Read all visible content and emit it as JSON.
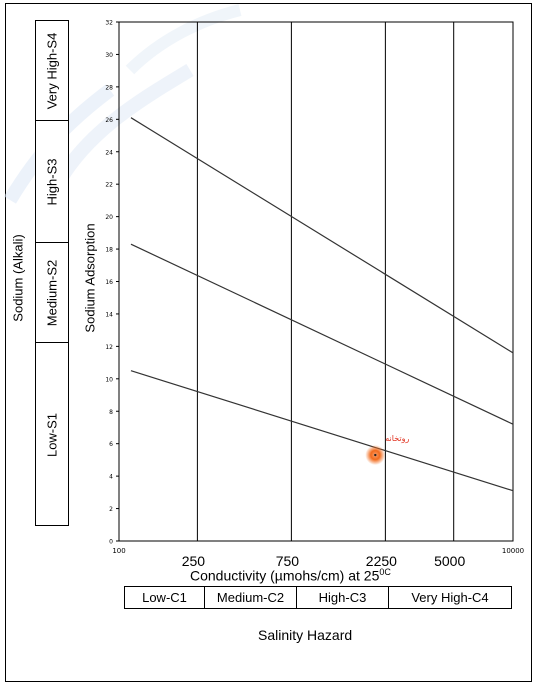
{
  "chart_data": {
    "type": "scatter",
    "title": "",
    "xlabel": "Conductivity (µmohs/cm) at 25",
    "xlabel_sup": "0C",
    "ylabel": "Sodium Adsorption",
    "outer_ylabel": "Sodium (Alkali)",
    "x_scale": "log",
    "xlim": [
      100,
      10000
    ],
    "ylim": [
      0,
      32
    ],
    "x_ticks_small": [
      {
        "value": 100,
        "label": "100"
      },
      {
        "value": 10000,
        "label": "10000"
      }
    ],
    "x_ticks_large": [
      {
        "value": 250,
        "label": "250"
      },
      {
        "value": 750,
        "label": "750"
      },
      {
        "value": 2250,
        "label": "2250"
      },
      {
        "value": 5000,
        "label": "5000"
      }
    ],
    "y_ticks": [
      0,
      2,
      4,
      6,
      8,
      10,
      12,
      14,
      16,
      18,
      20,
      22,
      24,
      26,
      28,
      30,
      32
    ],
    "class_boundaries_x": [
      250,
      750,
      2250,
      5000
    ],
    "hazard_lines": [
      {
        "x": [
          115,
          10000
        ],
        "y": [
          10.5,
          3.1
        ]
      },
      {
        "x": [
          115,
          10000
        ],
        "y": [
          18.3,
          7.2
        ]
      },
      {
        "x": [
          115,
          10000
        ],
        "y": [
          26.1,
          11.6
        ]
      }
    ],
    "points": [
      {
        "label": "روتخانه",
        "x": 2000,
        "y": 5.3
      }
    ],
    "sodium_classes": [
      "Low-S1",
      "Medium-S2",
      "High-S3",
      "Very High-S4"
    ],
    "salinity_classes": [
      "Low-C1",
      "Medium-C2",
      "High-C3",
      "Very High-C4"
    ],
    "salinity_caption": "Salinity Hazard",
    "colors": {
      "point": "#f26a1b",
      "point_label": "#e0301e",
      "lines": "#333333"
    }
  }
}
